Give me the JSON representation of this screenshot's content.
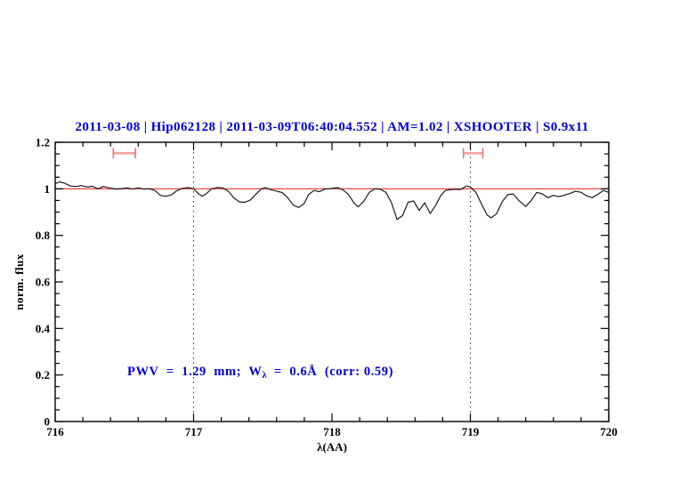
{
  "colors": {
    "title_blue": "#0000cd",
    "annotation_blue": "#0000cd",
    "reference_red": "#ee5555",
    "marker_bar": "#f4a2a2",
    "marker_cap": "#e87474",
    "spectrum": "#1a1a1a",
    "axis": "#000000",
    "vline": "#333333",
    "background": "#ffffff"
  },
  "chart_data": {
    "type": "line",
    "title": "2011-03-08 | Hip062128 | 2011-03-09T06:40:04.552 | AM=1.02 | XSHOOTER | S0.9x11",
    "xlabel": "λ(AA)",
    "ylabel": "norm. flux",
    "xlim": [
      716,
      720
    ],
    "ylim": [
      0,
      1.2
    ],
    "x_ticks": [
      716,
      717,
      718,
      719,
      720
    ],
    "x_tick_labels": [
      "716",
      "717",
      "718",
      "719",
      "720"
    ],
    "x_minor_step": 0.2,
    "y_ticks": [
      0,
      0.2,
      0.4,
      0.6,
      0.8,
      1,
      1.2
    ],
    "y_tick_labels": [
      "0",
      "0.2",
      "0.4",
      "0.6",
      "0.8",
      "1",
      "1.2"
    ],
    "y_minor_step": 0.05,
    "grid": "off",
    "legend": "none",
    "vlines": [
      717,
      719
    ],
    "reference_line_y": 1.0,
    "annotation": {
      "prefix": "PWV  =  1.29  mm;  W",
      "sub": "λ",
      "suffix": "  =  0.6Å  (corr: 0.59)"
    },
    "range_markers": [
      {
        "x_min": 716.42,
        "x_max": 716.58,
        "y": 1.153,
        "cap_half_height": 0.022
      },
      {
        "x_min": 718.95,
        "x_max": 719.09,
        "y": 1.153,
        "cap_half_height": 0.022
      }
    ],
    "series": [
      {
        "name": "normalized-spectrum",
        "points": [
          [
            716.0,
            1.022
          ],
          [
            716.03,
            1.03
          ],
          [
            716.07,
            1.024
          ],
          [
            716.11,
            1.012
          ],
          [
            716.15,
            1.01
          ],
          [
            716.19,
            1.014
          ],
          [
            716.23,
            1.008
          ],
          [
            716.27,
            1.011
          ],
          [
            716.31,
            1.0
          ],
          [
            716.35,
            1.01
          ],
          [
            716.39,
            1.004
          ],
          [
            716.44,
            0.999
          ],
          [
            716.48,
            1.001
          ],
          [
            716.52,
            1.004
          ],
          [
            716.56,
            0.999
          ],
          [
            716.6,
            1.004
          ],
          [
            716.64,
            0.999
          ],
          [
            716.68,
            1.0
          ],
          [
            716.72,
            0.993
          ],
          [
            716.76,
            0.972
          ],
          [
            716.8,
            0.968
          ],
          [
            716.84,
            0.974
          ],
          [
            716.88,
            0.992
          ],
          [
            716.92,
            1.002
          ],
          [
            716.96,
            1.005
          ],
          [
            717.0,
            1.0
          ],
          [
            717.03,
            0.982
          ],
          [
            717.06,
            0.968
          ],
          [
            717.09,
            0.978
          ],
          [
            717.13,
            1.0
          ],
          [
            717.17,
            1.006
          ],
          [
            717.21,
            1.004
          ],
          [
            717.25,
            0.99
          ],
          [
            717.29,
            0.962
          ],
          [
            717.33,
            0.944
          ],
          [
            717.37,
            0.942
          ],
          [
            717.41,
            0.952
          ],
          [
            717.45,
            0.977
          ],
          [
            717.49,
            1.0
          ],
          [
            717.52,
            1.005
          ],
          [
            717.56,
            0.996
          ],
          [
            717.6,
            0.99
          ],
          [
            717.64,
            0.984
          ],
          [
            717.68,
            0.962
          ],
          [
            717.72,
            0.93
          ],
          [
            717.76,
            0.92
          ],
          [
            717.8,
            0.938
          ],
          [
            717.83,
            0.975
          ],
          [
            717.87,
            0.993
          ],
          [
            717.91,
            0.988
          ],
          [
            717.95,
            0.999
          ],
          [
            718.0,
            1.002
          ],
          [
            718.04,
            1.005
          ],
          [
            718.08,
            0.995
          ],
          [
            718.12,
            0.975
          ],
          [
            718.16,
            0.938
          ],
          [
            718.19,
            0.923
          ],
          [
            718.23,
            0.947
          ],
          [
            718.27,
            0.985
          ],
          [
            718.31,
            1.0
          ],
          [
            718.35,
            0.998
          ],
          [
            718.39,
            0.985
          ],
          [
            718.43,
            0.94
          ],
          [
            718.47,
            0.868
          ],
          [
            718.51,
            0.885
          ],
          [
            718.55,
            0.942
          ],
          [
            718.59,
            0.948
          ],
          [
            718.63,
            0.907
          ],
          [
            718.67,
            0.94
          ],
          [
            718.71,
            0.894
          ],
          [
            718.75,
            0.93
          ],
          [
            718.79,
            0.975
          ],
          [
            718.82,
            0.993
          ],
          [
            718.86,
            0.997
          ],
          [
            718.9,
            0.998
          ],
          [
            718.93,
            0.997
          ],
          [
            718.97,
            1.012
          ],
          [
            719.0,
            1.008
          ],
          [
            719.04,
            0.985
          ],
          [
            719.08,
            0.935
          ],
          [
            719.12,
            0.888
          ],
          [
            719.15,
            0.875
          ],
          [
            719.19,
            0.893
          ],
          [
            719.23,
            0.945
          ],
          [
            719.27,
            0.975
          ],
          [
            719.31,
            0.978
          ],
          [
            719.35,
            0.95
          ],
          [
            719.4,
            0.924
          ],
          [
            719.44,
            0.95
          ],
          [
            719.48,
            0.985
          ],
          [
            719.52,
            0.978
          ],
          [
            719.56,
            0.962
          ],
          [
            719.6,
            0.972
          ],
          [
            719.64,
            0.966
          ],
          [
            719.68,
            0.973
          ],
          [
            719.72,
            0.98
          ],
          [
            719.76,
            0.99
          ],
          [
            719.8,
            0.985
          ],
          [
            719.84,
            0.97
          ],
          [
            719.88,
            0.962
          ],
          [
            719.92,
            0.976
          ],
          [
            719.96,
            0.993
          ],
          [
            720.0,
            0.985
          ]
        ]
      }
    ]
  }
}
